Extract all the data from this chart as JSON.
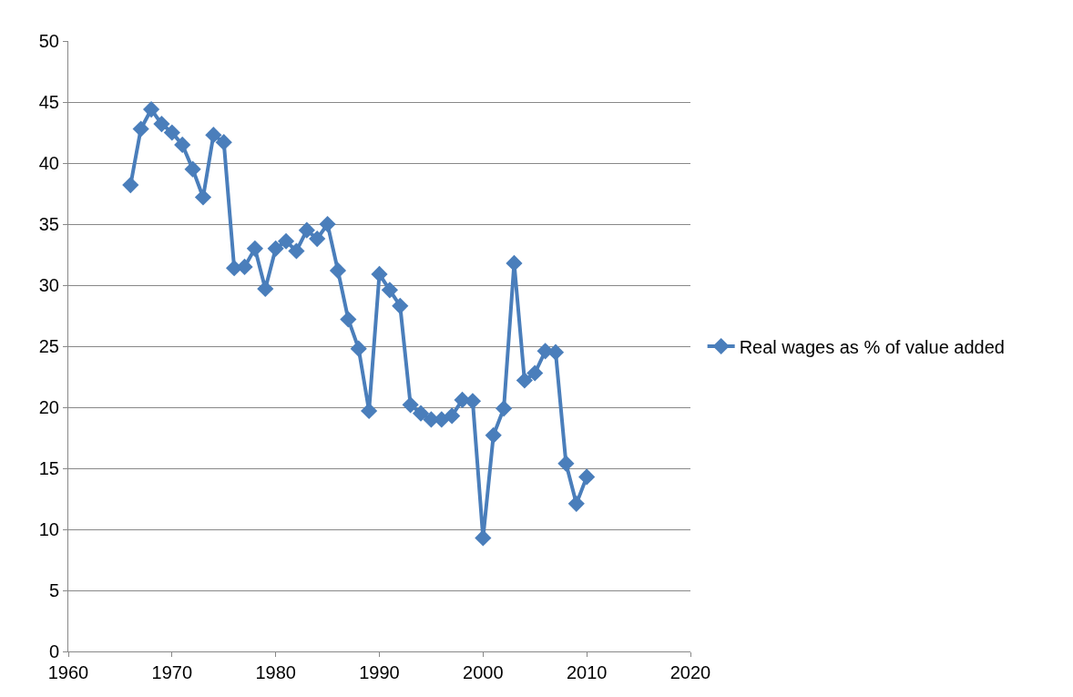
{
  "chart_data": {
    "type": "line",
    "x": [
      1966,
      1967,
      1968,
      1969,
      1970,
      1971,
      1972,
      1973,
      1974,
      1975,
      1976,
      1977,
      1978,
      1979,
      1980,
      1981,
      1982,
      1983,
      1984,
      1985,
      1986,
      1987,
      1988,
      1989,
      1990,
      1991,
      1992,
      1993,
      1994,
      1995,
      1996,
      1997,
      1998,
      1999,
      2000,
      2001,
      2002,
      2003,
      2004,
      2005,
      2006,
      2007,
      2008,
      2009,
      2010
    ],
    "series": [
      {
        "name": "Real wages as % of value added",
        "color": "#4a7ebb",
        "values": [
          38.2,
          42.8,
          44.4,
          43.2,
          42.5,
          41.5,
          39.5,
          37.2,
          42.3,
          41.7,
          31.4,
          31.5,
          33.0,
          29.7,
          33.0,
          33.6,
          32.8,
          34.5,
          33.8,
          35.0,
          31.2,
          27.2,
          24.8,
          19.7,
          30.9,
          29.6,
          28.3,
          20.2,
          19.5,
          19.0,
          19.0,
          19.3,
          20.6,
          20.5,
          9.3,
          17.7,
          19.9,
          31.8,
          22.2,
          22.8,
          24.6,
          24.5,
          15.4,
          12.1,
          14.3
        ]
      }
    ],
    "xlim": [
      1960,
      2020
    ],
    "xticks": [
      1960,
      1970,
      1980,
      1990,
      2000,
      2010,
      2020
    ],
    "ylim": [
      0,
      50
    ],
    "yticks": [
      0,
      5,
      10,
      15,
      20,
      25,
      30,
      35,
      40,
      45,
      50
    ],
    "grid": "y",
    "legend": "right",
    "marker": "diamond",
    "line_style": "solid"
  }
}
